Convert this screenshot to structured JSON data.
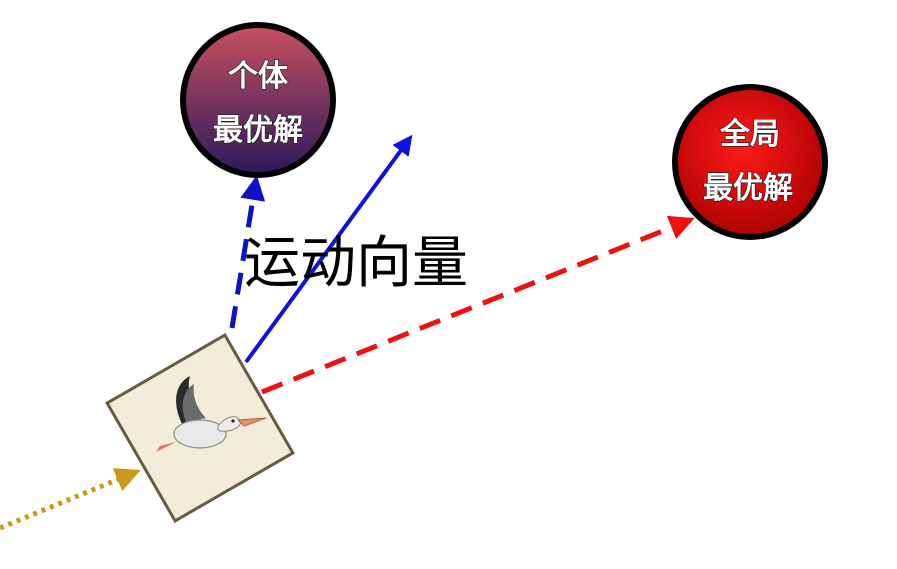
{
  "diagram": {
    "center_label": "运动向量",
    "personal_best": {
      "line1": "个体",
      "line2": "最优解"
    },
    "global_best": {
      "line1": "全局",
      "line2": "最优解"
    },
    "colors": {
      "personal_best_arrow": "#1010c8",
      "motion_arrow": "#1010e0",
      "global_best_arrow": "#ee1111",
      "inertia_arrow": "#c99a1a",
      "personal_best_fill_top": "#c04a55",
      "personal_best_fill_bottom": "#2a1a5a",
      "global_best_fill": "#dd0000",
      "particle_fill": "#f3ecd9",
      "particle_border": "#6b5a42"
    },
    "icons": {
      "particle": "pelican-icon"
    }
  }
}
